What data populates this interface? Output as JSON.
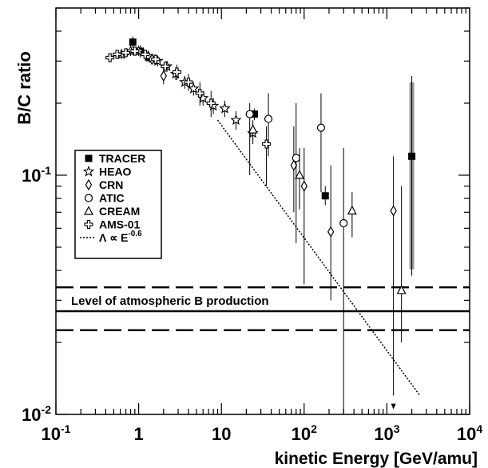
{
  "chart_data": {
    "type": "scatter",
    "xlabel": "kinetic Energy [GeV/amu]",
    "ylabel": "B/C ratio",
    "xscale": "log",
    "yscale": "log",
    "xlim": [
      0.1,
      10000
    ],
    "ylim": [
      0.01,
      0.5
    ],
    "x_ticks": [
      {
        "value": 0.1,
        "base": "10",
        "exp": "-1"
      },
      {
        "value": 1,
        "base": "1",
        "exp": ""
      },
      {
        "value": 10,
        "base": "10",
        "exp": ""
      },
      {
        "value": 100,
        "base": "10",
        "exp": "2"
      },
      {
        "value": 1000,
        "base": "10",
        "exp": "3"
      },
      {
        "value": 10000,
        "base": "10",
        "exp": "4"
      }
    ],
    "y_ticks": [
      {
        "value": 0.1,
        "base": "10",
        "exp": "-1"
      },
      {
        "value": 0.01,
        "base": "10",
        "exp": "-2"
      }
    ],
    "legend_position": "left",
    "series": [
      {
        "name": "TRACER",
        "marker": "filled-square",
        "syserr": true,
        "points": [
          {
            "x": 0.85,
            "y": 0.36,
            "ylo": 0.34,
            "yhi": 0.38
          },
          {
            "x": 1.05,
            "y": 0.33,
            "ylo": 0.31,
            "yhi": 0.35
          },
          {
            "x": 1.35,
            "y": 0.31,
            "ylo": 0.295,
            "yhi": 0.325
          },
          {
            "x": 25,
            "y": 0.18,
            "ylo": 0.17,
            "yhi": 0.19
          },
          {
            "x": 180,
            "y": 0.082,
            "ylo": 0.075,
            "yhi": 0.09
          },
          {
            "x": 2000,
            "y": 0.12,
            "ylo": 0.038,
            "yhi": 0.26
          }
        ]
      },
      {
        "name": "HEAO",
        "marker": "open-star",
        "syserr": false,
        "points": [
          {
            "x": 0.62,
            "y": 0.32,
            "ylo": 0.305,
            "yhi": 0.335
          },
          {
            "x": 0.8,
            "y": 0.33,
            "ylo": 0.315,
            "yhi": 0.345
          },
          {
            "x": 1.0,
            "y": 0.33,
            "ylo": 0.315,
            "yhi": 0.345
          },
          {
            "x": 1.3,
            "y": 0.315,
            "ylo": 0.3,
            "yhi": 0.33
          },
          {
            "x": 1.7,
            "y": 0.3,
            "ylo": 0.285,
            "yhi": 0.315
          },
          {
            "x": 2.2,
            "y": 0.285,
            "ylo": 0.27,
            "yhi": 0.3
          },
          {
            "x": 2.8,
            "y": 0.265,
            "ylo": 0.25,
            "yhi": 0.28
          },
          {
            "x": 3.6,
            "y": 0.245,
            "ylo": 0.23,
            "yhi": 0.26
          },
          {
            "x": 4.6,
            "y": 0.23,
            "ylo": 0.215,
            "yhi": 0.245
          },
          {
            "x": 6.0,
            "y": 0.21,
            "ylo": 0.195,
            "yhi": 0.225
          },
          {
            "x": 8.0,
            "y": 0.195,
            "ylo": 0.18,
            "yhi": 0.21
          },
          {
            "x": 11,
            "y": 0.19,
            "ylo": 0.175,
            "yhi": 0.205
          },
          {
            "x": 15,
            "y": 0.17,
            "ylo": 0.155,
            "yhi": 0.185
          },
          {
            "x": 24,
            "y": 0.15,
            "ylo": 0.135,
            "yhi": 0.165
          }
        ]
      },
      {
        "name": "CRN",
        "marker": "open-diamond",
        "syserr": false,
        "points": [
          {
            "x": 1.45,
            "y": 0.305,
            "ylo": 0.29,
            "yhi": 0.32
          },
          {
            "x": 2.0,
            "y": 0.26,
            "ylo": 0.24,
            "yhi": 0.28
          },
          {
            "x": 75,
            "y": 0.11,
            "ylo": 0.07,
            "yhi": 0.16
          },
          {
            "x": 100,
            "y": 0.09,
            "ylo": 0.035,
            "yhi": 0.13
          },
          {
            "x": 210,
            "y": 0.058,
            "ylo": 0.03,
            "yhi": 0.11
          },
          {
            "x": 1200,
            "y": 0.071,
            "ylo": 0.012,
            "yhi": 0.12
          }
        ]
      },
      {
        "name": "ATIC",
        "marker": "open-circle",
        "syserr": false,
        "points": [
          {
            "x": 22,
            "y": 0.18,
            "ylo": 0.1,
            "yhi": 0.2
          },
          {
            "x": 37,
            "y": 0.172,
            "ylo": 0.12,
            "yhi": 0.22
          },
          {
            "x": 80,
            "y": 0.118,
            "ylo": 0.052,
            "yhi": 0.2
          },
          {
            "x": 160,
            "y": 0.158,
            "ylo": 0.085,
            "yhi": 0.22
          },
          {
            "x": 300,
            "y": 0.063,
            "ylo": 0.01,
            "yhi": 0.13
          }
        ]
      },
      {
        "name": "CREAM",
        "marker": "open-triangle",
        "syserr": false,
        "points": [
          {
            "x": 24,
            "y": 0.155,
            "ylo": 0.14,
            "yhi": 0.17
          },
          {
            "x": 88,
            "y": 0.1,
            "ylo": 0.072,
            "yhi": 0.13
          },
          {
            "x": 380,
            "y": 0.071,
            "ylo": 0.055,
            "yhi": 0.085
          },
          {
            "x": 1500,
            "y": 0.033,
            "ylo": 0.02,
            "yhi": 0.09
          }
        ]
      },
      {
        "name": "AMS-01",
        "marker": "open-cross",
        "syserr": false,
        "points": [
          {
            "x": 0.45,
            "y": 0.31,
            "ylo": 0.3,
            "yhi": 0.32
          },
          {
            "x": 0.55,
            "y": 0.32,
            "ylo": 0.31,
            "yhi": 0.33
          },
          {
            "x": 0.7,
            "y": 0.325,
            "ylo": 0.315,
            "yhi": 0.335
          },
          {
            "x": 0.9,
            "y": 0.33,
            "ylo": 0.32,
            "yhi": 0.34
          },
          {
            "x": 1.2,
            "y": 0.32,
            "ylo": 0.31,
            "yhi": 0.33
          },
          {
            "x": 1.6,
            "y": 0.305,
            "ylo": 0.29,
            "yhi": 0.32
          },
          {
            "x": 2.1,
            "y": 0.285,
            "ylo": 0.27,
            "yhi": 0.3
          },
          {
            "x": 2.9,
            "y": 0.27,
            "ylo": 0.25,
            "yhi": 0.29
          },
          {
            "x": 4.0,
            "y": 0.245,
            "ylo": 0.225,
            "yhi": 0.265
          },
          {
            "x": 5.5,
            "y": 0.22,
            "ylo": 0.195,
            "yhi": 0.245
          },
          {
            "x": 7.5,
            "y": 0.2,
            "ylo": 0.175,
            "yhi": 0.225
          },
          {
            "x": 35,
            "y": 0.135,
            "ylo": 0.09,
            "yhi": 0.16
          }
        ]
      }
    ],
    "model_line": {
      "name": "Λ ∝ E",
      "exp": "-0.6",
      "style": "dotted",
      "from": [
        9,
        0.17
      ],
      "to": [
        2500,
        0.012
      ]
    },
    "atmospheric_band": {
      "label": "Level of atmospheric B production",
      "center": 0.027,
      "upper": 0.034,
      "lower": 0.0225
    }
  }
}
